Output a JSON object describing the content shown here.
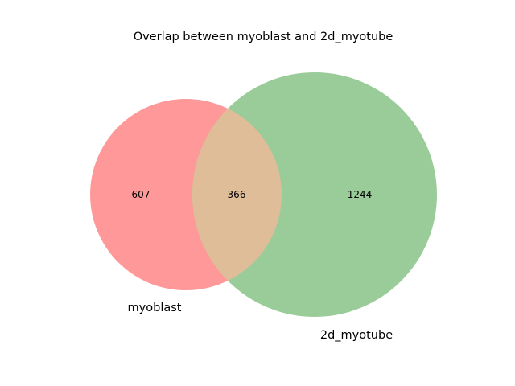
{
  "chart_data": {
    "type": "venn",
    "title": "Overlap between myoblast and 2d_myotube",
    "sets": [
      {
        "name": "myoblast",
        "only_count": 607,
        "color": "#ff9999"
      },
      {
        "name": "2d_myotube",
        "only_count": 1244,
        "color": "#99cc99"
      }
    ],
    "intersection": {
      "count": 366,
      "color": "#e0bd99"
    },
    "labels": {
      "set_a": "myoblast",
      "set_b": "2d_myotube",
      "only_a": "607",
      "only_b": "1244",
      "both": "366"
    }
  }
}
